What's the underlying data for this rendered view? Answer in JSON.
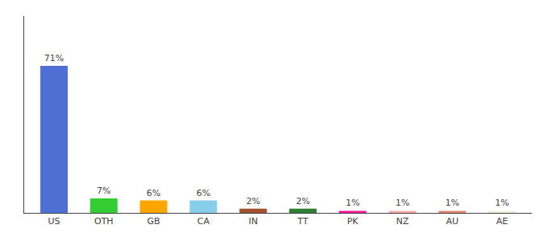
{
  "chart_data": {
    "type": "bar",
    "categories": [
      "US",
      "OTH",
      "GB",
      "CA",
      "IN",
      "TT",
      "PK",
      "NZ",
      "AU",
      "AE"
    ],
    "values": [
      71,
      7,
      6,
      6,
      2,
      2,
      1,
      1,
      1,
      1
    ],
    "value_labels": [
      "71%",
      "7%",
      "6%",
      "6%",
      "2%",
      "2%",
      "1%",
      "1%",
      "1%",
      "1%"
    ],
    "colors": [
      "#4e6fd4",
      "#33cc33",
      "#ffa500",
      "#87ceeb",
      "#a0522d",
      "#2e7d32",
      "#ff1493",
      "#ffaaaa",
      "#e8826e",
      "#f0f0d8"
    ],
    "ylim": [
      0,
      95
    ],
    "data_labels": true,
    "tick_labels": "x",
    "grid": false
  }
}
